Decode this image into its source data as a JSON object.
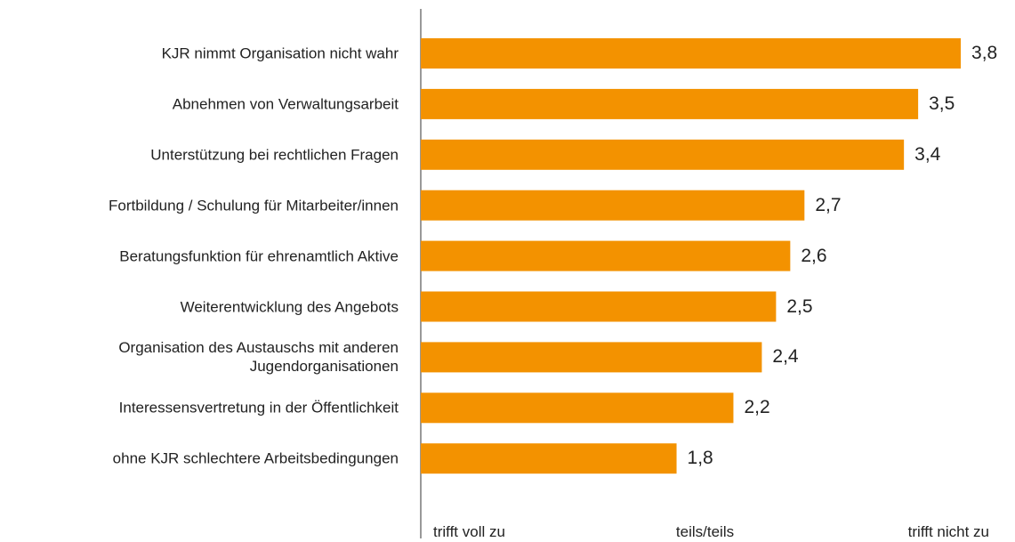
{
  "chart_data": {
    "type": "bar",
    "orientation": "horizontal",
    "categories": [
      "KJR nimmt Organisation nicht wahr",
      "Abnehmen von Verwaltungsarbeit",
      "Unterstützung bei rechtlichen Fragen",
      "Fortbildung / Schulung für Mitarbeiter/innen",
      "Beratungsfunktion für ehrenamtlich Aktive",
      "Weiterentwicklung des Angebots",
      "Organisation des Austauschs mit anderen\nJugendorganisationen",
      "Interessensvertretung in der Öffentlichkeit",
      "ohne KJR schlechtere Arbeitsbedingungen"
    ],
    "values": [
      3.8,
      3.5,
      3.4,
      2.7,
      2.6,
      2.5,
      2.4,
      2.2,
      1.8
    ],
    "value_labels": [
      "3,8",
      "3,5",
      "3,4",
      "2,7",
      "2,6",
      "2,5",
      "2,4",
      "2,2",
      "1,8"
    ],
    "color": "#f39200",
    "xlim": [
      0,
      4
    ],
    "xticks": [
      {
        "value": 0,
        "label": "trifft voll zu"
      },
      {
        "value": 2,
        "label": "teils/teils"
      },
      {
        "value": 4,
        "label": "trifft nicht zu"
      }
    ]
  }
}
